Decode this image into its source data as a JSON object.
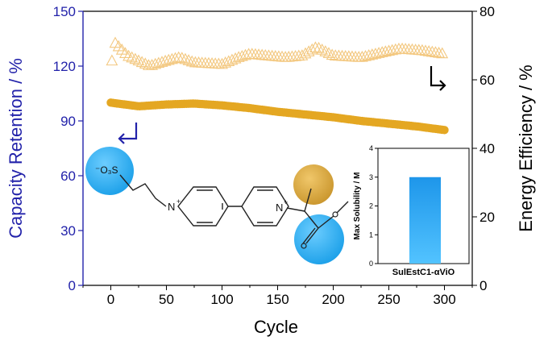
{
  "chart_data": [
    {
      "type": "scatter",
      "xlabel": "Cycle",
      "ylabel_left": "Capacity Retention / %",
      "ylabel_right": "Energy Efficiency / %",
      "xlim": [
        -25,
        325
      ],
      "ylim_left": [
        0,
        150
      ],
      "ylim_right": [
        0,
        80
      ],
      "xticks": [
        0,
        50,
        100,
        150,
        200,
        250,
        300
      ],
      "yticks_left": [
        0,
        30,
        60,
        90,
        120,
        150
      ],
      "yticks_right": [
        0,
        20,
        40,
        60,
        80
      ],
      "colors": {
        "left_axis": "#2222aa",
        "capacity": "#e4a722",
        "efficiency": "#f3c880"
      },
      "series": [
        {
          "axis": "left",
          "marker": "filled-circle",
          "x": [
            0,
            25,
            50,
            75,
            100,
            125,
            150,
            175,
            200,
            225,
            250,
            275,
            300
          ],
          "y": [
            100,
            98,
            99,
            99.5,
            98.5,
            97,
            95,
            93.5,
            92,
            90,
            88.5,
            87,
            85
          ]
        },
        {
          "axis": "right",
          "marker": "open-triangle",
          "x": [
            1,
            3,
            15,
            35,
            50,
            62,
            75,
            100,
            115,
            125,
            140,
            158,
            172,
            185,
            200,
            225,
            245,
            260,
            280,
            300
          ],
          "y": [
            65.5,
            71,
            67,
            64,
            65.5,
            66.5,
            65,
            64.5,
            66.5,
            67.5,
            67,
            66.5,
            67,
            69.5,
            67,
            66.5,
            68,
            69,
            68.5,
            67.5
          ]
        }
      ]
    },
    {
      "type": "bar",
      "ylabel": "Max Solubility / M",
      "categories": [
        "SulEstC1-αViO"
      ],
      "values": [
        3
      ],
      "ylim": [
        0,
        4
      ],
      "yticks": [
        0,
        1,
        2,
        3,
        4
      ],
      "bar_color": "#29a3f0"
    }
  ],
  "molecule": {
    "sulfonate_label": "⁻O₃S",
    "n_plus_label": "N",
    "plus_sign": "+",
    "colors": {
      "blue": "#1aa3ef",
      "gold": "#d9a637"
    }
  }
}
